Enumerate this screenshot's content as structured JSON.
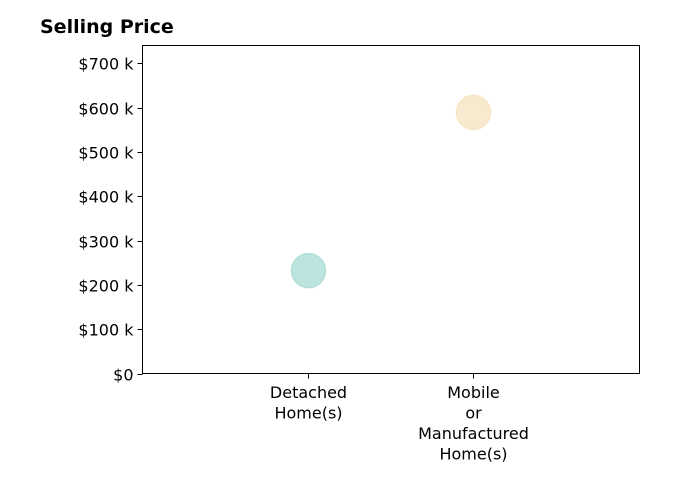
{
  "chart_data": {
    "type": "scatter",
    "title": "Selling Price",
    "categories": [
      "Detached Home(s)",
      "Mobile or Manufactured Home(s)"
    ],
    "category_tick_lines": [
      [
        "Detached",
        "Home(s)"
      ],
      [
        "Mobile",
        "or",
        "Manufactured",
        "Home(s)"
      ]
    ],
    "values": [
      232000,
      589000
    ],
    "colors": [
      "#b2dfd9",
      "#f7e6c6"
    ],
    "ylim": [
      0,
      740000
    ],
    "y_ticks": [
      0,
      100000,
      200000,
      300000,
      400000,
      500000,
      600000,
      700000
    ],
    "y_tick_labels": [
      "$0",
      "$100 k",
      "$200 k",
      "$300 k",
      "$400 k",
      "$500 k",
      "$600 k",
      "$700 k"
    ],
    "xlabel": "",
    "ylabel": "",
    "grid": false,
    "legend": "none"
  }
}
